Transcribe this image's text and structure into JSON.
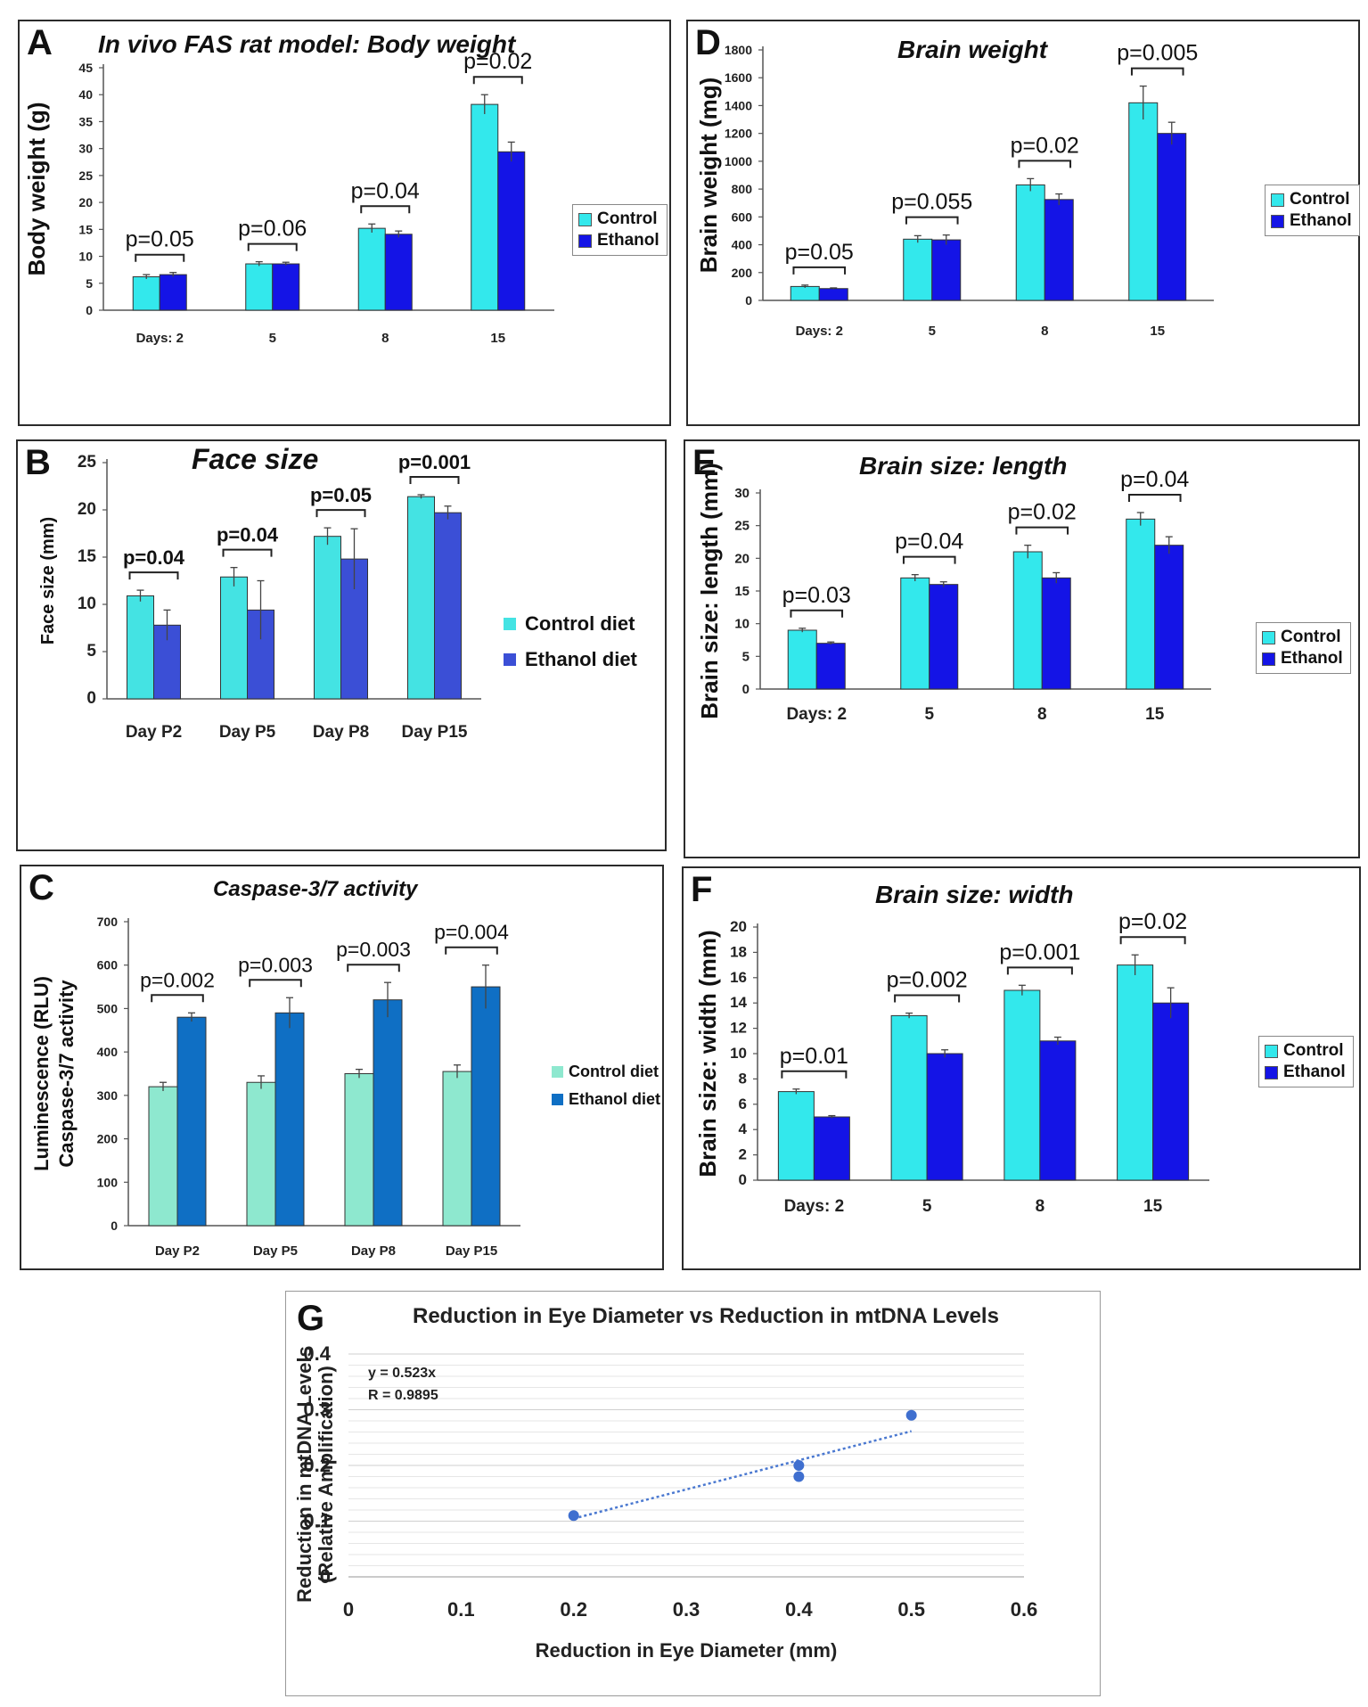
{
  "colors": {
    "control": "#33e8ec",
    "ethanol": "#1414e6",
    "faceControl": "#44e3e3",
    "faceEthanol": "#3b4fd6",
    "casControl": "#8ee8cf",
    "casEthanol": "#0f6fc4",
    "scatter": "#3f6fcf"
  },
  "chart_data": [
    {
      "id": "A",
      "type": "bar",
      "label": "A",
      "title": "In vivo FAS rat model: Body weight",
      "ylabel": "Body weight (g)",
      "categories": [
        "Days: 2",
        "5",
        "8",
        "15"
      ],
      "ylim": [
        0,
        45
      ],
      "yticks": [
        0,
        5,
        10,
        15,
        20,
        25,
        30,
        35,
        40,
        45
      ],
      "series": [
        {
          "name": "Control",
          "values": [
            6.2,
            8.6,
            15.2,
            38.2
          ],
          "errors": [
            0.4,
            0.4,
            0.8,
            1.8
          ]
        },
        {
          "name": "Ethanol",
          "values": [
            6.6,
            8.6,
            14.1,
            29.4
          ],
          "errors": [
            0.4,
            0.3,
            0.6,
            1.8
          ]
        }
      ],
      "pvalues": [
        "p=0.05",
        "p=0.06",
        "p=0.04",
        "p=0.02"
      ],
      "legend": [
        "Control",
        "Ethanol"
      ]
    },
    {
      "id": "B",
      "type": "bar",
      "label": "B",
      "title": "Face size",
      "ylabel": "Face size (mm)",
      "categories": [
        "Day P2",
        "Day P5",
        "Day P8",
        "Day P15"
      ],
      "ylim": [
        0,
        25
      ],
      "yticks": [
        0,
        5,
        10,
        15,
        20,
        25
      ],
      "series": [
        {
          "name": "Control diet",
          "values": [
            10.9,
            12.9,
            17.2,
            21.4
          ],
          "errors": [
            0.6,
            1.0,
            0.9,
            0.2
          ]
        },
        {
          "name": "Ethanol diet",
          "values": [
            7.8,
            9.4,
            14.8,
            19.7
          ],
          "errors": [
            1.6,
            3.1,
            3.2,
            0.7
          ]
        }
      ],
      "pvalues": [
        "p=0.04",
        "p=0.04",
        "p=0.05",
        "p=0.001"
      ],
      "legend": [
        "Control diet",
        "Ethanol diet"
      ]
    },
    {
      "id": "C",
      "type": "bar",
      "label": "C",
      "title": "Caspase-3/7 activity",
      "ylabel": "Luminescence (RLU)",
      "ylabel2": "Caspase-3/7 activity",
      "categories": [
        "Day P2",
        "Day P5",
        "Day P8",
        "Day P15"
      ],
      "ylim": [
        0,
        700
      ],
      "yticks": [
        0,
        100,
        200,
        300,
        400,
        500,
        600,
        700
      ],
      "series": [
        {
          "name": "Control diet",
          "values": [
            320,
            330,
            350,
            355
          ],
          "errors": [
            10,
            15,
            10,
            15
          ]
        },
        {
          "name": "Ethanol diet",
          "values": [
            480,
            490,
            520,
            550
          ],
          "errors": [
            10,
            35,
            40,
            50
          ]
        }
      ],
      "pvalues": [
        "p=0.002",
        "p=0.003",
        "p=0.003",
        "p=0.004"
      ],
      "legend": [
        "Control diet",
        "Ethanol diet"
      ]
    },
    {
      "id": "D",
      "type": "bar",
      "label": "D",
      "title": "Brain weight",
      "ylabel": "Brain weight (mg)",
      "categories": [
        "Days: 2",
        "5",
        "8",
        "15"
      ],
      "ylim": [
        0,
        1800
      ],
      "yticks": [
        0,
        200,
        400,
        600,
        800,
        1000,
        1200,
        1400,
        1600,
        1800
      ],
      "series": [
        {
          "name": "Control",
          "values": [
            100,
            440,
            830,
            1420
          ],
          "errors": [
            10,
            25,
            45,
            120
          ]
        },
        {
          "name": "Ethanol",
          "values": [
            85,
            435,
            725,
            1200
          ],
          "errors": [
            5,
            35,
            40,
            80
          ]
        }
      ],
      "pvalues": [
        "p=0.05",
        "p=0.055",
        "p=0.02",
        "p=0.005"
      ],
      "legend": [
        "Control",
        "Ethanol"
      ]
    },
    {
      "id": "E",
      "type": "bar",
      "label": "E",
      "title": "Brain size: length",
      "ylabel": "Brain size: length (mm)",
      "categories": [
        "Days: 2",
        "5",
        "8",
        "15"
      ],
      "ylim": [
        0,
        30
      ],
      "yticks": [
        0,
        5,
        10,
        15,
        20,
        25,
        30
      ],
      "series": [
        {
          "name": "Control",
          "values": [
            9,
            17,
            21,
            26
          ],
          "errors": [
            0.3,
            0.5,
            1.0,
            1.0
          ]
        },
        {
          "name": "Ethanol",
          "values": [
            7,
            16,
            17,
            22
          ],
          "errors": [
            0.2,
            0.4,
            0.8,
            1.3
          ]
        }
      ],
      "pvalues": [
        "p=0.03",
        "p=0.04",
        "p=0.02",
        "p=0.04"
      ],
      "legend": [
        "Control",
        "Ethanol"
      ]
    },
    {
      "id": "F",
      "type": "bar",
      "label": "F",
      "title": "Brain size: width",
      "ylabel": "Brain size: width (mm)",
      "categories": [
        "Days: 2",
        "5",
        "8",
        "15"
      ],
      "ylim": [
        0,
        20
      ],
      "yticks": [
        0,
        2,
        4,
        6,
        8,
        10,
        12,
        14,
        16,
        18,
        20
      ],
      "series": [
        {
          "name": "Control",
          "values": [
            7,
            13,
            15,
            17
          ],
          "errors": [
            0.2,
            0.2,
            0.4,
            0.8
          ]
        },
        {
          "name": "Ethanol",
          "values": [
            5,
            10,
            11,
            14
          ],
          "errors": [
            0.1,
            0.3,
            0.3,
            1.2
          ]
        }
      ],
      "pvalues": [
        "p=0.01",
        "p=0.002",
        "p=0.001",
        "p=0.02"
      ],
      "legend": [
        "Control",
        "Ethanol"
      ]
    },
    {
      "id": "G",
      "type": "scatter",
      "label": "G",
      "title": "Reduction in Eye Diameter vs Reduction in mtDNA Levels",
      "xlabel": "Reduction in Eye Diameter (mm)",
      "ylabel": "Reduction in mtDNA Levels",
      "ylabel2": "(Relative Amplification)",
      "xlim": [
        0,
        0.6
      ],
      "ylim": [
        0,
        0.4
      ],
      "xticks": [
        "0",
        "0.1",
        "0.2",
        "0.3",
        "0.4",
        "0.5",
        "0.6"
      ],
      "yticks": [
        "0",
        "0.1",
        "0.2",
        "0.3",
        "0.4"
      ],
      "points": [
        [
          0.2,
          0.11
        ],
        [
          0.4,
          0.2
        ],
        [
          0.4,
          0.18
        ],
        [
          0.5,
          0.29
        ]
      ],
      "trendline": {
        "slope": 0.523,
        "x": [
          0.2,
          0.5
        ]
      },
      "equation": "y = 0.523x",
      "rvalue": "R = 0.9895"
    }
  ]
}
